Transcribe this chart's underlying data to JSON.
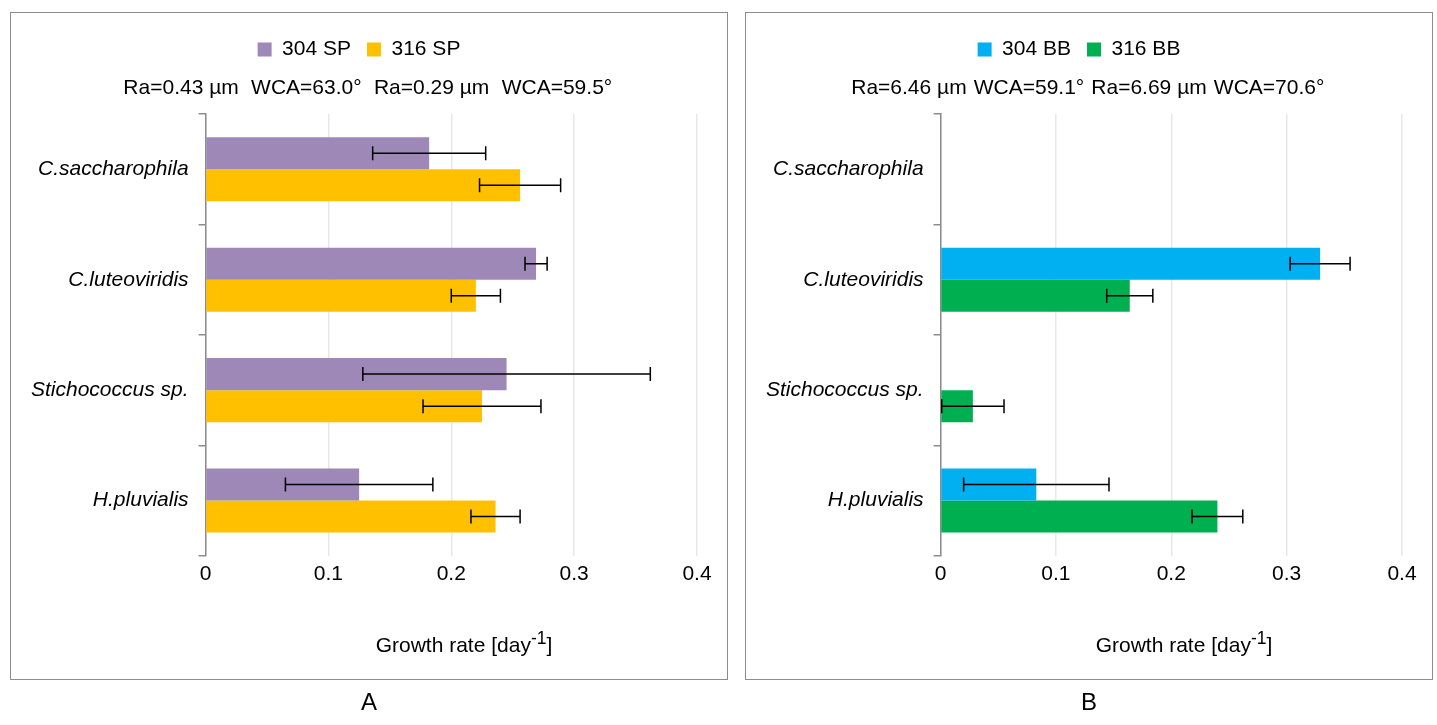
{
  "chart_data": [
    {
      "type": "bar",
      "orientation": "horizontal",
      "title": "A",
      "xlabel": "Growth rate [day$^{-1}$]",
      "categories": [
        "C.saccharophila",
        "C.luteoviridis",
        "Stichococcus sp.",
        "H.pluvialis"
      ],
      "series": [
        {
          "name": "304 SP",
          "color": "#9e88b8",
          "values": [
            0.182,
            0.269,
            0.245,
            0.125
          ],
          "errors": [
            0.046,
            0.009,
            0.117,
            0.06
          ]
        },
        {
          "name": "316 SP",
          "color": "#ffc000",
          "values": [
            0.256,
            0.22,
            0.225,
            0.236
          ],
          "errors": [
            0.033,
            0.02,
            0.048,
            0.02
          ]
        }
      ],
      "annotations": [
        "Ra=0.43 µm",
        "WCA=63.0°",
        "Ra=0.29 µm",
        "WCA=59.5°"
      ],
      "xlim": [
        0,
        0.4
      ],
      "xticks": [
        0,
        0.1,
        0.2,
        0.3,
        0.4
      ],
      "grid": "x",
      "legend": "top"
    },
    {
      "type": "bar",
      "orientation": "horizontal",
      "title": "B",
      "xlabel": "Growth rate [day$^{-1}$]",
      "categories": [
        "C.saccharophila",
        "C.luteoviridis",
        "Stichococcus sp.",
        "H.pluvialis"
      ],
      "series": [
        {
          "name": "304 BB",
          "color": "#00b0f0",
          "values": [
            null,
            0.329,
            null,
            0.083
          ],
          "errors": [
            null,
            0.026,
            null,
            0.063
          ]
        },
        {
          "name": "316 BB",
          "color": "#00b050",
          "values": [
            null,
            0.164,
            0.028,
            0.24
          ],
          "errors": [
            null,
            0.02,
            0.027,
            0.022
          ]
        }
      ],
      "annotations": [
        "Ra=6.46 µm",
        "WCA=59.1°",
        "Ra=6.69 µm",
        "WCA=70.6°"
      ],
      "xlim": [
        0,
        0.4
      ],
      "xticks": [
        0,
        0.1,
        0.2,
        0.3,
        0.4
      ],
      "grid": "x",
      "legend": "top"
    }
  ]
}
